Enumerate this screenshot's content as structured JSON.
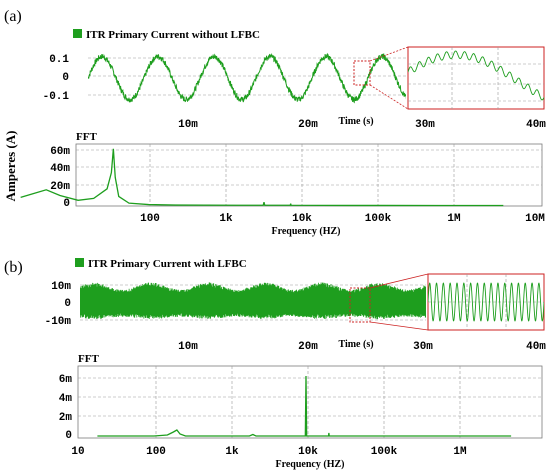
{
  "figure": {
    "shared_ylabel": "Amperes (A)",
    "colors": {
      "trace": "#1e9e1e",
      "zoom_box": "#cc2222",
      "grid": "#9a9a9a"
    }
  },
  "chart_data": [
    {
      "id": "a_time",
      "panel_tag": "(a)",
      "type": "line",
      "title": "ITR Primary Current without LFBC",
      "legend_swatch": true,
      "xlabel": "Time (s)",
      "xlim": [
        0,
        0.04
      ],
      "xticks": [
        "10m",
        "20m",
        "30m",
        "40m"
      ],
      "xtick_values": [
        0.01,
        0.02,
        0.03,
        0.04
      ],
      "ylim": [
        -0.13,
        0.13
      ],
      "yticks": [
        "0.1",
        "0",
        "-0.1"
      ],
      "ytick_values": [
        0.1,
        0,
        -0.1
      ],
      "series": [
        {
          "fundamental_hz": 200,
          "amplitude_a": 0.09,
          "ripple_hz": 10000,
          "ripple_amplitude_a": 0.012
        }
      ],
      "zoom_inset": {
        "present": true,
        "window_s": [
          0.0325,
          0.034
        ]
      }
    },
    {
      "id": "a_fft",
      "type": "line",
      "title": "FFT",
      "xlabel": "Frequency (HZ)",
      "xscale": "log",
      "xlim": [
        10,
        10000000
      ],
      "xticks": [
        "100",
        "1k",
        "10k",
        "100k",
        "1M",
        "10M"
      ],
      "xtick_values": [
        100,
        1000,
        10000,
        100000,
        1000000,
        10000000
      ],
      "ylim": [
        0,
        0.065
      ],
      "yticks": [
        "60m",
        "40m",
        "20m",
        "0"
      ],
      "ytick_values": [
        0.06,
        0.04,
        0.02,
        0
      ],
      "series": [
        {
          "x": [
            18,
            25,
            35,
            50,
            80,
            120,
            170,
            190,
            200,
            210,
            230,
            300,
            500,
            1000,
            5000,
            9800,
            10000,
            10200,
            19800,
            20000,
            20200,
            100000,
            1000000,
            5000000
          ],
          "y": [
            0.009,
            0.013,
            0.017,
            0.011,
            0.006,
            0.008,
            0.018,
            0.035,
            0.06,
            0.03,
            0.01,
            0.003,
            0.0015,
            0.001,
            0.0008,
            0.0008,
            0.004,
            0.0008,
            0.0008,
            0.0025,
            0.0008,
            0.0006,
            0.0005,
            0.0005
          ]
        }
      ]
    },
    {
      "id": "b_time",
      "panel_tag": "(b)",
      "type": "line",
      "title": "ITR Primary Current with LFBC",
      "legend_swatch": true,
      "xlabel": "Time (s)",
      "xlim": [
        0,
        0.04
      ],
      "xticks": [
        "10m",
        "20m",
        "30m",
        "40m"
      ],
      "xtick_values": [
        0.01,
        0.02,
        0.03,
        0.04
      ],
      "ylim": [
        -0.014,
        0.014
      ],
      "yticks": [
        "10m",
        "0",
        "-10m"
      ],
      "ytick_values": [
        0.01,
        0,
        -0.01
      ],
      "series": [
        {
          "ripple_hz": 10000,
          "amplitude_a": 0.008,
          "low_freq_hz": 200,
          "low_freq_amplitude_a": 0.0006
        }
      ],
      "zoom_inset": {
        "present": true,
        "window_s": [
          0.0254,
          0.0271
        ]
      }
    },
    {
      "id": "b_fft",
      "type": "line",
      "title": "FFT",
      "xlabel": "Frequency (HZ)",
      "xscale": "log",
      "xlim": [
        10,
        10000000
      ],
      "xticks": [
        "10",
        "100",
        "1k",
        "10k",
        "100k",
        "1M"
      ],
      "xtick_values": [
        10,
        100,
        1000,
        10000,
        100000,
        1000000
      ],
      "ylim": [
        0,
        0.0072
      ],
      "yticks": [
        "6m",
        "4m",
        "2m",
        "0"
      ],
      "ytick_values": [
        0.006,
        0.004,
        0.002,
        0
      ],
      "series": [
        {
          "x": [
            18,
            100,
            150,
            180,
            200,
            220,
            260,
            400,
            1000,
            1800,
            2000,
            2200,
            5000,
            9800,
            10000,
            10200,
            19800,
            20000,
            20200,
            100000,
            1000000,
            5000000
          ],
          "y": [
            0.0002,
            0.0002,
            0.0003,
            0.0006,
            0.0008,
            0.0004,
            0.0002,
            0.0002,
            0.0002,
            0.0002,
            0.00035,
            0.0002,
            0.0002,
            0.0002,
            0.0062,
            0.0002,
            0.0002,
            0.0005,
            0.0002,
            0.0002,
            0.0002,
            0.0002
          ]
        }
      ]
    }
  ]
}
